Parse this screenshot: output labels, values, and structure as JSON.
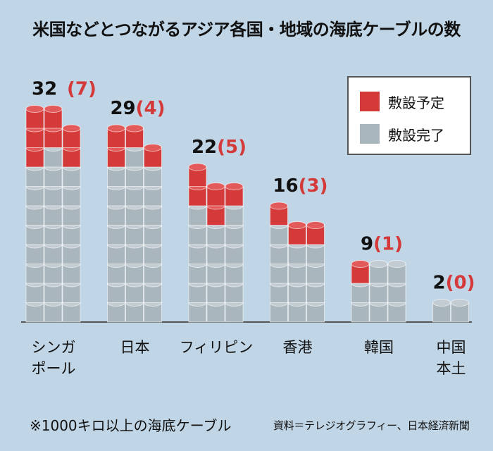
{
  "title": "米国などとつながるアジア各国・地域の海底ケーブルの数",
  "footnote": "※1000キロ以上の海底ケーブル",
  "source": "資料＝テレジオグラフィー、日本経済新聞",
  "colors": {
    "planned": "#d43a3a",
    "completed": "#a9b6bd",
    "background": "#c0d5e5"
  },
  "chart_data": {
    "type": "bar",
    "title": "米国などとつながるアジア各国・地域の海底ケーブルの数",
    "categories": [
      "シンガポール",
      "日本",
      "フィリピン",
      "香港",
      "韓国",
      "中国本土"
    ],
    "category_lines": [
      [
        "シンガ",
        "ポール"
      ],
      [
        "日本"
      ],
      [
        "フィリピン"
      ],
      [
        "香港"
      ],
      [
        "韓国"
      ],
      [
        "中国",
        "本土"
      ]
    ],
    "stacked": true,
    "series": [
      {
        "name": "敷設完了",
        "values": [
          25,
          25,
          17,
          13,
          8,
          2
        ]
      },
      {
        "name": "敷設予定",
        "values": [
          7,
          4,
          5,
          3,
          1,
          0
        ]
      }
    ],
    "totals": [
      32,
      29,
      22,
      16,
      9,
      2
    ],
    "total_labels": [
      "32",
      "29",
      "22",
      "16",
      "9",
      "2"
    ],
    "planned_labels": [
      "(7)",
      "(4)",
      "(5)",
      "(3)",
      "(1)",
      "(0)"
    ],
    "legend": {
      "position": "top-right",
      "entries": [
        "敷設予定",
        "敷設完了"
      ]
    }
  }
}
